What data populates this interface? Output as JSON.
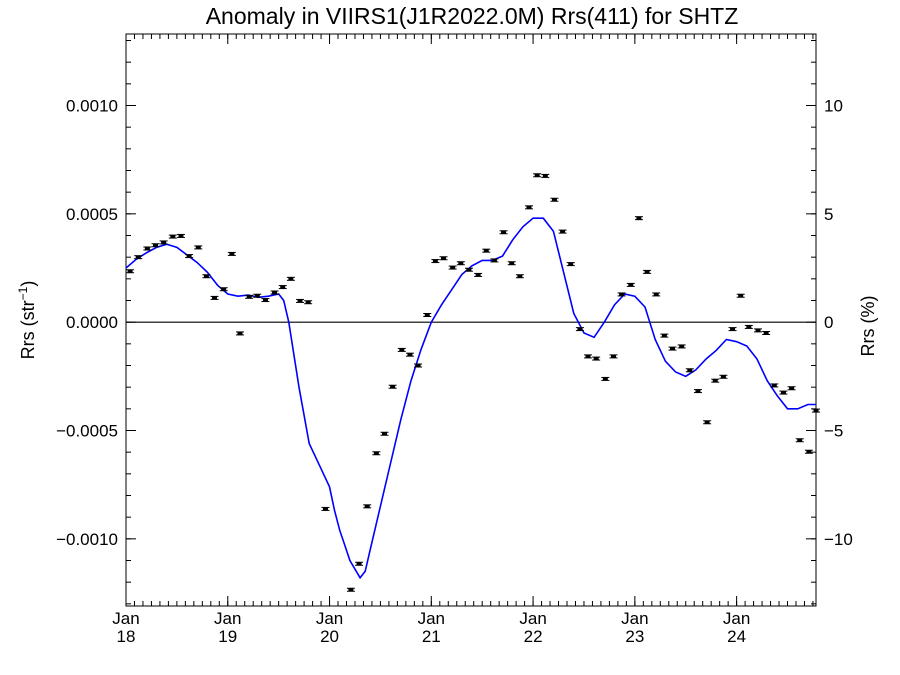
{
  "chart_data": {
    "type": "scatter",
    "title": "Anomaly in VIIRS1(J1R2022.0M) Rrs(411) for SHTZ",
    "ylabel_left": "Rrs (str",
    "ylabel_left_sup": "−1",
    "ylabel_left_close": ")",
    "ylabel_right": "Rrs (%)",
    "xlim": [
      2018.0,
      2024.78
    ],
    "ylim_left": [
      -0.00131,
      0.00133
    ],
    "ylim_right": [
      -13.1,
      13.3
    ],
    "x_ticks": [
      {
        "value": 2018,
        "month": "Jan",
        "year": "18"
      },
      {
        "value": 2019,
        "month": "Jan",
        "year": "19"
      },
      {
        "value": 2020,
        "month": "Jan",
        "year": "20"
      },
      {
        "value": 2021,
        "month": "Jan",
        "year": "21"
      },
      {
        "value": 2022,
        "month": "Jan",
        "year": "22"
      },
      {
        "value": 2023,
        "month": "Jan",
        "year": "23"
      },
      {
        "value": 2024,
        "month": "Jan",
        "year": "24"
      }
    ],
    "y_ticks_left": [
      {
        "value": 0.001,
        "label": "0.0010"
      },
      {
        "value": 0.0005,
        "label": "0.0005"
      },
      {
        "value": 0.0,
        "label": "0.0000"
      },
      {
        "value": -0.0005,
        "label": "−0.0005"
      },
      {
        "value": -0.001,
        "label": "−0.0010"
      }
    ],
    "y_ticks_right": [
      {
        "value": 10,
        "label": "10"
      },
      {
        "value": 5,
        "label": "5"
      },
      {
        "value": 0,
        "label": "0"
      },
      {
        "value": -5,
        "label": "−5"
      },
      {
        "value": -10,
        "label": "−10"
      }
    ],
    "zero_line": 0.0,
    "series": [
      {
        "kind": "points",
        "color": "#000000",
        "x": [
          2018.04,
          2018.12,
          2018.21,
          2018.29,
          2018.37,
          2018.46,
          2018.54,
          2018.62,
          2018.71,
          2018.79,
          2018.87,
          2018.96,
          2019.04,
          2019.12,
          2019.21,
          2019.29,
          2019.37,
          2019.46,
          2019.54,
          2019.62,
          2019.71,
          2019.79,
          2019.96,
          2020.21,
          2020.29,
          2020.37,
          2020.46,
          2020.54,
          2020.62,
          2020.71,
          2020.79,
          2020.87,
          2020.96,
          2021.04,
          2021.12,
          2021.21,
          2021.29,
          2021.37,
          2021.46,
          2021.54,
          2021.62,
          2021.71,
          2021.79,
          2021.87,
          2021.96,
          2022.04,
          2022.12,
          2022.21,
          2022.29,
          2022.37,
          2022.46,
          2022.54,
          2022.62,
          2022.71,
          2022.79,
          2022.87,
          2022.96,
          2023.04,
          2023.12,
          2023.21,
          2023.29,
          2023.37,
          2023.46,
          2023.54,
          2023.62,
          2023.71,
          2023.79,
          2023.87,
          2023.96,
          2024.04,
          2024.12,
          2024.21,
          2024.29,
          2024.37,
          2024.46,
          2024.54,
          2024.62,
          2024.71,
          2024.78
        ],
        "y": [
          0.000235,
          0.0003,
          0.00034,
          0.000355,
          0.000368,
          0.000395,
          0.000398,
          0.000305,
          0.000345,
          0.000212,
          0.000112,
          0.000152,
          0.000315,
          -5.2e-05,
          0.000117,
          0.000122,
          0.000102,
          0.000137,
          0.000162,
          0.0002,
          9.8e-05,
          9.2e-05,
          -0.000862,
          -0.001235,
          -0.001115,
          -0.00085,
          -0.000605,
          -0.000515,
          -0.000298,
          -0.000128,
          -0.00015,
          -0.0002,
          3.3e-05,
          0.000282,
          0.000295,
          0.000252,
          0.000272,
          0.000242,
          0.000218,
          0.00033,
          0.000285,
          0.000415,
          0.000272,
          0.000212,
          0.00053,
          0.000678,
          0.000675,
          0.000565,
          0.000418,
          0.000268,
          -3.2e-05,
          -0.000158,
          -0.000168,
          -0.000262,
          -0.000158,
          0.000128,
          0.000172,
          0.00048,
          0.000232,
          0.000128,
          -6.2e-05,
          -0.000122,
          -0.000112,
          -0.000222,
          -0.000318,
          -0.000462,
          -0.00027,
          -0.000252,
          -3.2e-05,
          0.000122,
          -2.2e-05,
          -3.8e-05,
          -5e-05,
          -0.000292,
          -0.000325,
          -0.000305,
          -0.000545,
          -0.000598,
          -0.000408
        ]
      },
      {
        "kind": "line",
        "color": "#0000ff",
        "x": [
          2018.0,
          2018.1,
          2018.2,
          2018.3,
          2018.4,
          2018.5,
          2018.6,
          2018.7,
          2018.8,
          2018.9,
          2019.0,
          2019.1,
          2019.2,
          2019.3,
          2019.4,
          2019.5,
          2019.55,
          2019.6,
          2019.7,
          2019.8,
          2019.9,
          2020.0,
          2020.05,
          2020.1,
          2020.15,
          2020.2,
          2020.3,
          2020.35,
          2020.4,
          2020.5,
          2020.6,
          2020.7,
          2020.8,
          2020.9,
          2021.0,
          2021.1,
          2021.2,
          2021.3,
          2021.4,
          2021.5,
          2021.6,
          2021.7,
          2021.8,
          2021.9,
          2022.0,
          2022.1,
          2022.2,
          2022.3,
          2022.4,
          2022.5,
          2022.6,
          2022.7,
          2022.8,
          2022.9,
          2023.0,
          2023.1,
          2023.2,
          2023.3,
          2023.4,
          2023.5,
          2023.6,
          2023.7,
          2023.8,
          2023.9,
          2024.0,
          2024.1,
          2024.2,
          2024.3,
          2024.4,
          2024.5,
          2024.6,
          2024.7,
          2024.78
        ],
        "y": [
          0.00025,
          0.00029,
          0.00032,
          0.000345,
          0.00036,
          0.000345,
          0.00031,
          0.000275,
          0.00023,
          0.00017,
          0.00013,
          0.00012,
          0.000125,
          0.000115,
          0.00012,
          0.00013,
          0.0001,
          0.0,
          -0.0003,
          -0.00056,
          -0.00066,
          -0.00076,
          -0.00087,
          -0.00096,
          -0.00103,
          -0.0011,
          -0.00118,
          -0.00115,
          -0.00105,
          -0.00085,
          -0.00065,
          -0.00045,
          -0.00027,
          -0.000125,
          0.0,
          8e-05,
          0.00015,
          0.00022,
          0.00026,
          0.000285,
          0.000285,
          0.000305,
          0.00038,
          0.00044,
          0.00048,
          0.00048,
          0.00042,
          0.00023,
          4e-05,
          -5e-05,
          -7e-05,
          0.0,
          8e-05,
          0.00013,
          0.00012,
          7e-05,
          -8e-05,
          -0.00018,
          -0.00023,
          -0.00025,
          -0.00022,
          -0.00017,
          -0.00013,
          -8e-05,
          -9e-05,
          -0.00011,
          -0.00017,
          -0.00027,
          -0.00034,
          -0.0004,
          -0.0004,
          -0.00038,
          -0.00038
        ]
      }
    ]
  }
}
